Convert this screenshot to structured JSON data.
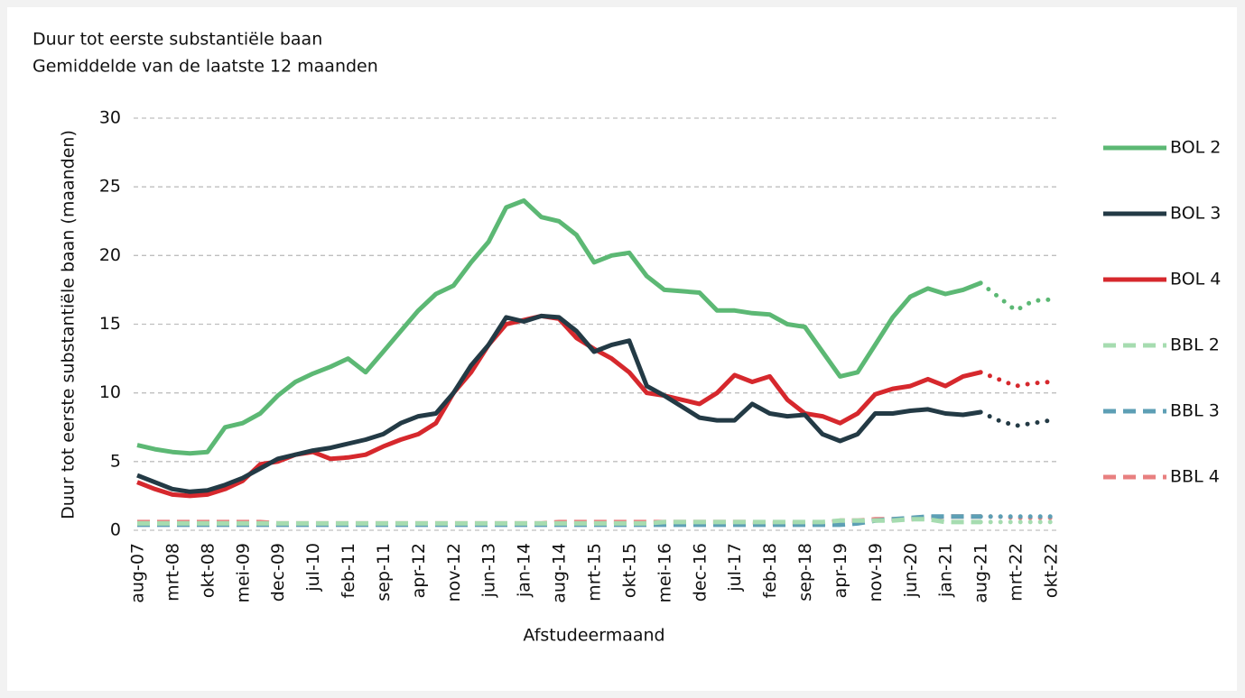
{
  "chart_data": {
    "type": "line",
    "title": "Duur tot eerste substantiële baan",
    "subtitle": "Gemiddelde van de laatste 12 maanden",
    "y_label": "Duur tot eerste substantiële baan (maanden)",
    "x_label": "Afstudeermaand",
    "categories": [
      "aug-07",
      null,
      "mrt-08",
      null,
      "okt-08",
      null,
      "mei-09",
      null,
      "dec-09",
      null,
      "jul-10",
      null,
      "feb-11",
      null,
      "sep-11",
      null,
      "apr-12",
      null,
      "nov-12",
      null,
      "jun-13",
      null,
      "jan-14",
      null,
      "aug-14",
      null,
      "mrt-15",
      null,
      "okt-15",
      null,
      "mei-16",
      null,
      "dec-16",
      null,
      "jul-17",
      null,
      "feb-18",
      null,
      "sep-18",
      null,
      "apr-19",
      null,
      "nov-19",
      null,
      "jun-20",
      null,
      "jan-21",
      null,
      "aug-21",
      null,
      "mrt-22",
      null,
      "okt-22"
    ],
    "ylim": [
      0,
      30
    ],
    "yticks": [
      0,
      5,
      10,
      15,
      20,
      25,
      30
    ],
    "grid": true,
    "legend": "right",
    "series": [
      {
        "name": "BOL 2",
        "color": "#5cb874",
        "dash": "solid",
        "values": [
          6.2,
          5.9,
          5.7,
          5.6,
          5.7,
          7.5,
          7.8,
          8.5,
          9.8,
          10.8,
          11.4,
          11.9,
          12.5,
          11.5,
          13.0,
          14.5,
          16.0,
          17.2,
          17.8,
          19.5,
          21.0,
          23.5,
          24.0,
          22.8,
          22.5,
          21.5,
          19.5,
          20.0,
          20.2,
          18.5,
          17.5,
          17.4,
          17.3,
          16.0,
          16.0,
          15.8,
          15.7,
          15.0,
          14.8,
          13.0,
          11.2,
          11.5,
          13.5,
          15.5,
          17.0,
          17.6,
          17.2,
          17.5,
          18.0,
          null,
          null,
          null,
          null
        ],
        "projection": [
          null,
          null,
          null,
          null,
          null,
          null,
          null,
          null,
          null,
          null,
          null,
          null,
          null,
          null,
          null,
          null,
          null,
          null,
          null,
          null,
          null,
          null,
          null,
          null,
          null,
          null,
          null,
          null,
          null,
          null,
          null,
          null,
          null,
          null,
          null,
          null,
          null,
          null,
          null,
          null,
          null,
          null,
          null,
          null,
          null,
          null,
          null,
          null,
          18.0,
          17.0,
          16.0,
          16.7,
          16.8
        ]
      },
      {
        "name": "BOL 3",
        "color": "#233a45",
        "dash": "solid",
        "values": [
          4.0,
          3.5,
          3.0,
          2.8,
          2.9,
          3.3,
          3.8,
          4.5,
          5.2,
          5.5,
          5.8,
          6.0,
          6.3,
          6.6,
          7.0,
          7.8,
          8.3,
          8.5,
          10.0,
          12.0,
          13.5,
          15.5,
          15.2,
          15.6,
          15.5,
          14.5,
          13.0,
          13.5,
          13.8,
          10.5,
          9.8,
          9.0,
          8.2,
          8.0,
          8.0,
          9.2,
          8.5,
          8.3,
          8.4,
          7.0,
          6.5,
          7.0,
          8.5,
          8.5,
          8.7,
          8.8,
          8.5,
          8.4,
          8.6,
          null,
          null,
          null,
          null
        ],
        "projection": [
          null,
          null,
          null,
          null,
          null,
          null,
          null,
          null,
          null,
          null,
          null,
          null,
          null,
          null,
          null,
          null,
          null,
          null,
          null,
          null,
          null,
          null,
          null,
          null,
          null,
          null,
          null,
          null,
          null,
          null,
          null,
          null,
          null,
          null,
          null,
          null,
          null,
          null,
          null,
          null,
          null,
          null,
          null,
          null,
          null,
          null,
          null,
          null,
          8.6,
          8.0,
          7.6,
          7.8,
          8.0
        ]
      },
      {
        "name": "BOL 4",
        "color": "#d6282d",
        "dash": "solid",
        "values": [
          3.5,
          3.0,
          2.6,
          2.5,
          2.6,
          3.0,
          3.6,
          4.8,
          5.0,
          5.5,
          5.7,
          5.2,
          5.3,
          5.5,
          6.1,
          6.6,
          7.0,
          7.8,
          10.0,
          11.5,
          13.5,
          15.0,
          15.3,
          15.6,
          15.4,
          14.0,
          13.2,
          12.5,
          11.5,
          10.0,
          9.8,
          9.5,
          9.2,
          10.0,
          11.3,
          10.8,
          11.2,
          9.5,
          8.5,
          8.3,
          7.8,
          8.5,
          9.9,
          10.3,
          10.5,
          11.0,
          10.5,
          11.2,
          11.5,
          null,
          null,
          null,
          null
        ],
        "projection": [
          null,
          null,
          null,
          null,
          null,
          null,
          null,
          null,
          null,
          null,
          null,
          null,
          null,
          null,
          null,
          null,
          null,
          null,
          null,
          null,
          null,
          null,
          null,
          null,
          null,
          null,
          null,
          null,
          null,
          null,
          null,
          null,
          null,
          null,
          null,
          null,
          null,
          null,
          null,
          null,
          null,
          null,
          null,
          null,
          null,
          null,
          null,
          null,
          11.5,
          11.0,
          10.5,
          10.7,
          10.8
        ]
      },
      {
        "name": "BBL 2",
        "color": "#a6dcb0",
        "dash": "dashed",
        "values": [
          0.5,
          0.5,
          0.5,
          0.5,
          0.5,
          0.5,
          0.5,
          0.5,
          0.5,
          0.5,
          0.5,
          0.5,
          0.5,
          0.5,
          0.5,
          0.5,
          0.5,
          0.5,
          0.5,
          0.5,
          0.5,
          0.5,
          0.5,
          0.5,
          0.5,
          0.5,
          0.5,
          0.5,
          0.5,
          0.5,
          0.6,
          0.6,
          0.6,
          0.6,
          0.6,
          0.6,
          0.6,
          0.6,
          0.6,
          0.6,
          0.7,
          0.7,
          0.7,
          0.7,
          0.8,
          0.8,
          0.6,
          0.6,
          0.6,
          null,
          null,
          null,
          null
        ],
        "projection": [
          null,
          null,
          null,
          null,
          null,
          null,
          null,
          null,
          null,
          null,
          null,
          null,
          null,
          null,
          null,
          null,
          null,
          null,
          null,
          null,
          null,
          null,
          null,
          null,
          null,
          null,
          null,
          null,
          null,
          null,
          null,
          null,
          null,
          null,
          null,
          null,
          null,
          null,
          null,
          null,
          null,
          null,
          null,
          null,
          null,
          null,
          null,
          null,
          0.6,
          0.6,
          0.6,
          0.6,
          0.6
        ]
      },
      {
        "name": "BBL 3",
        "color": "#5d9fb5",
        "dash": "dashed",
        "values": [
          0.4,
          0.4,
          0.4,
          0.4,
          0.4,
          0.4,
          0.4,
          0.4,
          0.4,
          0.4,
          0.4,
          0.4,
          0.4,
          0.4,
          0.4,
          0.4,
          0.4,
          0.4,
          0.4,
          0.4,
          0.4,
          0.4,
          0.4,
          0.4,
          0.4,
          0.4,
          0.4,
          0.4,
          0.4,
          0.4,
          0.4,
          0.4,
          0.4,
          0.4,
          0.4,
          0.4,
          0.4,
          0.4,
          0.4,
          0.4,
          0.4,
          0.5,
          0.7,
          0.8,
          0.9,
          1.0,
          1.0,
          1.0,
          1.0,
          null,
          null,
          null,
          null
        ],
        "projection": [
          null,
          null,
          null,
          null,
          null,
          null,
          null,
          null,
          null,
          null,
          null,
          null,
          null,
          null,
          null,
          null,
          null,
          null,
          null,
          null,
          null,
          null,
          null,
          null,
          null,
          null,
          null,
          null,
          null,
          null,
          null,
          null,
          null,
          null,
          null,
          null,
          null,
          null,
          null,
          null,
          null,
          null,
          null,
          null,
          null,
          null,
          null,
          null,
          1.0,
          1.0,
          1.0,
          1.0,
          1.0
        ]
      },
      {
        "name": "BBL 4",
        "color": "#e88080",
        "dash": "dashed",
        "values": [
          0.6,
          0.6,
          0.6,
          0.6,
          0.6,
          0.6,
          0.6,
          0.6,
          0.5,
          0.5,
          0.5,
          0.5,
          0.5,
          0.5,
          0.5,
          0.5,
          0.5,
          0.5,
          0.5,
          0.5,
          0.5,
          0.5,
          0.5,
          0.5,
          0.6,
          0.6,
          0.6,
          0.6,
          0.6,
          0.6,
          0.6,
          0.6,
          0.6,
          0.6,
          0.6,
          0.6,
          0.5,
          0.5,
          0.5,
          0.5,
          0.7,
          0.7,
          0.8,
          0.8,
          0.8,
          0.9,
          1.0,
          1.0,
          1.0,
          null,
          null,
          null,
          null
        ],
        "projection": [
          null,
          null,
          null,
          null,
          null,
          null,
          null,
          null,
          null,
          null,
          null,
          null,
          null,
          null,
          null,
          null,
          null,
          null,
          null,
          null,
          null,
          null,
          null,
          null,
          null,
          null,
          null,
          null,
          null,
          null,
          null,
          null,
          null,
          null,
          null,
          null,
          null,
          null,
          null,
          null,
          null,
          null,
          null,
          null,
          null,
          null,
          null,
          null,
          1.0,
          1.0,
          0.9,
          0.9,
          0.9
        ]
      }
    ]
  }
}
